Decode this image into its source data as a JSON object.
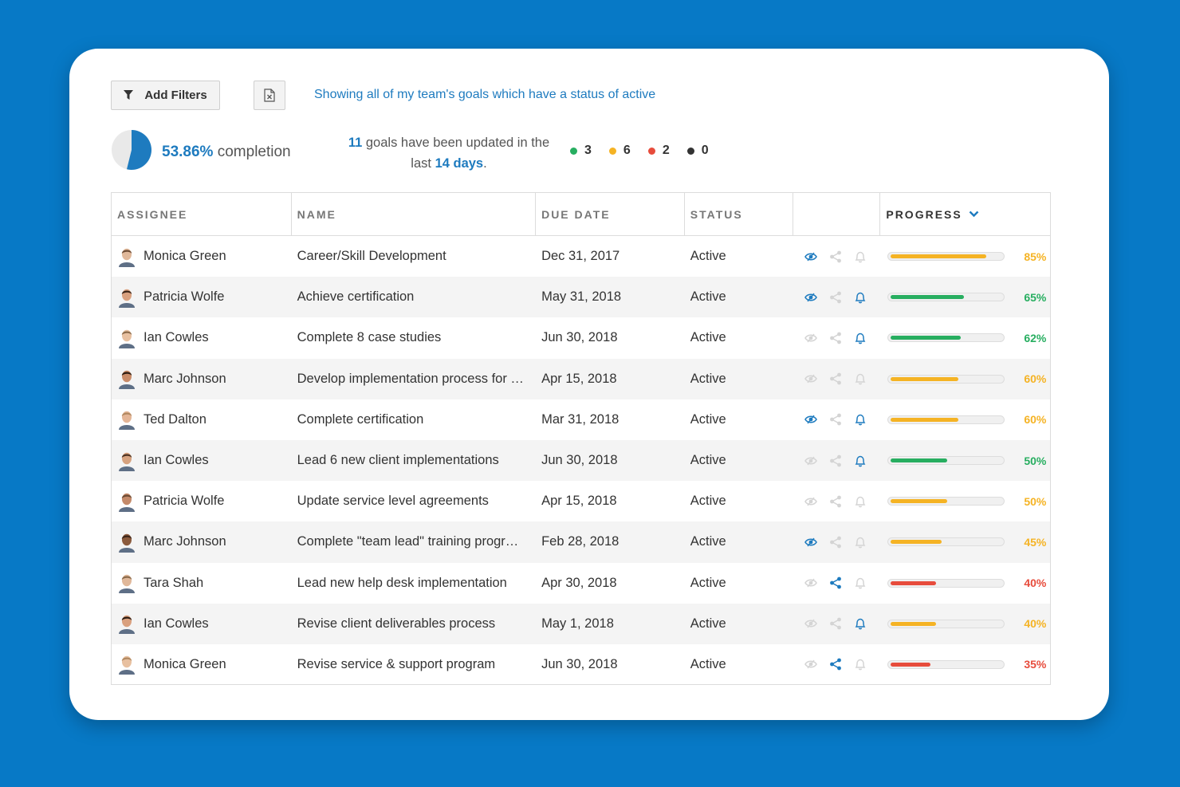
{
  "toolbar": {
    "filter_label": "Add Filters",
    "filter_summary": "Showing all of my team's goals which have a status of active"
  },
  "summary": {
    "completion_pct": "53.86%",
    "completion_text": "completion",
    "completion_value": 0.5386,
    "updated_count": "11",
    "updated_text_1": "goals have been updated in the",
    "updated_text_2": "last",
    "updated_days": "14 days",
    "updated_period": ".",
    "status_counts": [
      {
        "color": "#27ae60",
        "count": "3"
      },
      {
        "color": "#f5b324",
        "count": "6"
      },
      {
        "color": "#e74c3c",
        "count": "2"
      },
      {
        "color": "#333333",
        "count": "0"
      }
    ]
  },
  "table": {
    "headers": {
      "assignee": "ASSIGNEE",
      "name": "NAME",
      "due_date": "DUE DATE",
      "status": "STATUS",
      "progress": "PROGRESS"
    },
    "colors": {
      "green": "#27ae60",
      "yellow": "#f5b324",
      "red": "#e74c3c",
      "blue": "#1e7bbf",
      "muted": "#d4d4d4"
    },
    "rows": [
      {
        "assignee": "Monica Green",
        "name": "Career/Skill Development",
        "due": "Dec 31, 2017",
        "status": "Active",
        "watch": true,
        "share": false,
        "bell": false,
        "progress": 85,
        "progress_label": "85%",
        "level": "yellow"
      },
      {
        "assignee": "Patricia Wolfe",
        "name": "Achieve certification",
        "due": "May 31, 2018",
        "status": "Active",
        "watch": true,
        "share": false,
        "bell": true,
        "progress": 65,
        "progress_label": "65%",
        "level": "green"
      },
      {
        "assignee": "Ian Cowles",
        "name": "Complete 8 case studies",
        "due": "Jun 30, 2018",
        "status": "Active",
        "watch": false,
        "share": false,
        "bell": true,
        "progress": 62,
        "progress_label": "62%",
        "level": "green"
      },
      {
        "assignee": "Marc Johnson",
        "name": "Develop implementation process for …",
        "due": "Apr 15, 2018",
        "status": "Active",
        "watch": false,
        "share": false,
        "bell": false,
        "progress": 60,
        "progress_label": "60%",
        "level": "yellow"
      },
      {
        "assignee": "Ted Dalton",
        "name": "Complete certification",
        "due": "Mar 31, 2018",
        "status": "Active",
        "watch": true,
        "share": false,
        "bell": true,
        "progress": 60,
        "progress_label": "60%",
        "level": "yellow"
      },
      {
        "assignee": "Ian Cowles",
        "name": "Lead 6 new client implementations",
        "due": "Jun 30, 2018",
        "status": "Active",
        "watch": false,
        "share": false,
        "bell": true,
        "progress": 50,
        "progress_label": "50%",
        "level": "green"
      },
      {
        "assignee": "Patricia Wolfe",
        "name": "Update service level agreements",
        "due": "Apr 15, 2018",
        "status": "Active",
        "watch": false,
        "share": false,
        "bell": false,
        "progress": 50,
        "progress_label": "50%",
        "level": "yellow"
      },
      {
        "assignee": "Marc Johnson",
        "name": "Complete \"team lead\" training progr…",
        "due": "Feb 28, 2018",
        "status": "Active",
        "watch": true,
        "share": false,
        "bell": false,
        "progress": 45,
        "progress_label": "45%",
        "level": "yellow"
      },
      {
        "assignee": "Tara Shah",
        "name": "Lead new help desk implementation",
        "due": "Apr 30, 2018",
        "status": "Active",
        "watch": false,
        "share": true,
        "bell": false,
        "progress": 40,
        "progress_label": "40%",
        "level": "red"
      },
      {
        "assignee": "Ian Cowles",
        "name": "Revise client deliverables process",
        "due": "May 1, 2018",
        "status": "Active",
        "watch": false,
        "share": false,
        "bell": true,
        "progress": 40,
        "progress_label": "40%",
        "level": "yellow"
      },
      {
        "assignee": "Monica Green",
        "name": "Revise service & support program",
        "due": "Jun 30, 2018",
        "status": "Active",
        "watch": false,
        "share": true,
        "bell": false,
        "progress": 35,
        "progress_label": "35%",
        "level": "red"
      }
    ]
  }
}
